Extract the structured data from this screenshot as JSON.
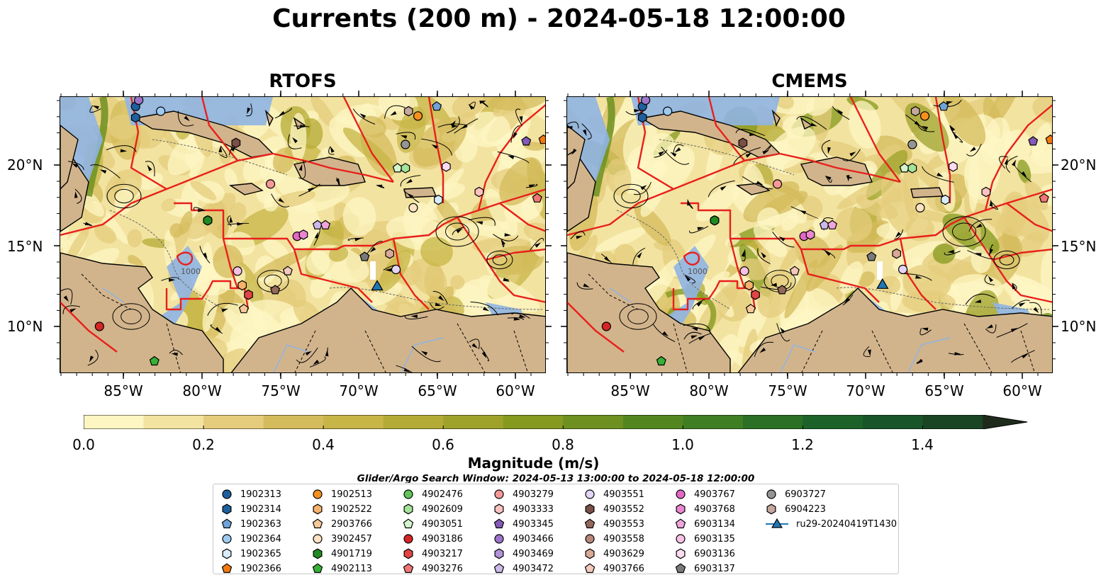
{
  "title": "Currents (200 m) - 2024-05-18 12:00:00",
  "panels": [
    {
      "title": "RTOFS"
    },
    {
      "title": "CMEMS"
    }
  ],
  "map": {
    "lon_ticks": [
      "85°W",
      "80°W",
      "75°W",
      "70°W",
      "65°W",
      "60°W"
    ],
    "lat_ticks": [
      "20°N",
      "15°N",
      "10°N"
    ],
    "extent": {
      "lon": [
        -89,
        -58
      ],
      "lat": [
        7,
        24.5
      ]
    },
    "isobath_label": "1000",
    "land_color": "#d2b48c",
    "shelf_color": "#8fb4e3",
    "eez_color": "#e8201c"
  },
  "colorbar": {
    "label": "Magnitude (m/s)",
    "ticks": [
      "0.0",
      "0.2",
      "0.4",
      "0.6",
      "0.8",
      "1.0",
      "1.2",
      "1.4"
    ],
    "min": 0.0,
    "max": 1.5,
    "extend": "max",
    "colors": [
      "#fdf6c3",
      "#f2e3a0",
      "#e4cc7c",
      "#d4bb5c",
      "#c7b547",
      "#b4ab36",
      "#9ea22b",
      "#859a1f",
      "#6d9020",
      "#54861f",
      "#3f7e22",
      "#2b7025",
      "#1d6329",
      "#185528",
      "#1a4524",
      "#1c3520",
      "#1e2b1c"
    ]
  },
  "search_window": "Glider/Argo Search Window: 2024-05-13 13:00:00 to 2024-05-18 12:00:00",
  "legend": [
    {
      "label": "1902313",
      "color": "#1f5f9e",
      "marker": "circle"
    },
    {
      "label": "1902314",
      "color": "#1f5f9e",
      "marker": "hexagon"
    },
    {
      "label": "1902363",
      "color": "#6fa3d8",
      "marker": "pentagon"
    },
    {
      "label": "1902364",
      "color": "#9ccaf0",
      "marker": "circle"
    },
    {
      "label": "1902365",
      "color": "#d8ecfb",
      "marker": "hexagon"
    },
    {
      "label": "1902366",
      "color": "#f5780f",
      "marker": "pentagon"
    },
    {
      "label": "1902513",
      "color": "#f5901f",
      "marker": "circle"
    },
    {
      "label": "1902522",
      "color": "#f7b36b",
      "marker": "hexagon"
    },
    {
      "label": "2903766",
      "color": "#f7c99a",
      "marker": "pentagon"
    },
    {
      "label": "3902457",
      "color": "#fde3c3",
      "marker": "circle"
    },
    {
      "label": "4901719",
      "color": "#218a21",
      "marker": "hexagon"
    },
    {
      "label": "4902113",
      "color": "#35b135",
      "marker": "pentagon"
    },
    {
      "label": "4902476",
      "color": "#63c35a",
      "marker": "circle"
    },
    {
      "label": "4902609",
      "color": "#a4e39a",
      "marker": "hexagon"
    },
    {
      "label": "4903051",
      "color": "#d4f5cc",
      "marker": "pentagon"
    },
    {
      "label": "4903186",
      "color": "#d62525",
      "marker": "circle"
    },
    {
      "label": "4903217",
      "color": "#e04545",
      "marker": "hexagon"
    },
    {
      "label": "4903276",
      "color": "#f07575",
      "marker": "pentagon"
    },
    {
      "label": "4903279",
      "color": "#f59898",
      "marker": "circle"
    },
    {
      "label": "4903333",
      "color": "#fbc2c0",
      "marker": "hexagon"
    },
    {
      "label": "4903345",
      "color": "#8459b8",
      "marker": "pentagon"
    },
    {
      "label": "4903466",
      "color": "#9d74c9",
      "marker": "circle"
    },
    {
      "label": "4903469",
      "color": "#b292d8",
      "marker": "hexagon"
    },
    {
      "label": "4903472",
      "color": "#cdb8ea",
      "marker": "pentagon"
    },
    {
      "label": "4903551",
      "color": "#e3d5f5",
      "marker": "circle"
    },
    {
      "label": "4903552",
      "color": "#7a4f46",
      "marker": "hexagon"
    },
    {
      "label": "4903553",
      "color": "#94685c",
      "marker": "pentagon"
    },
    {
      "label": "4903558",
      "color": "#b5887a",
      "marker": "circle"
    },
    {
      "label": "4903629",
      "color": "#d9a897",
      "marker": "hexagon"
    },
    {
      "label": "4903766",
      "color": "#f3c9bc",
      "marker": "pentagon"
    },
    {
      "label": "4903767",
      "color": "#e368c4",
      "marker": "circle"
    },
    {
      "label": "4903768",
      "color": "#ea86d0",
      "marker": "hexagon"
    },
    {
      "label": "6903134",
      "color": "#f0a4dc",
      "marker": "pentagon"
    },
    {
      "label": "6903135",
      "color": "#f7c1e6",
      "marker": "circle"
    },
    {
      "label": "6903136",
      "color": "#fbdcf1",
      "marker": "hexagon"
    },
    {
      "label": "6903137",
      "color": "#7a7a7a",
      "marker": "pentagon"
    },
    {
      "label": "6903727",
      "color": "#959595",
      "marker": "circle"
    },
    {
      "label": "6904223",
      "color": "#c4a89c",
      "marker": "hexagon"
    },
    {
      "label": "ru29-20240419T1430",
      "color": "#1f77b4",
      "marker": "triangle"
    }
  ]
}
